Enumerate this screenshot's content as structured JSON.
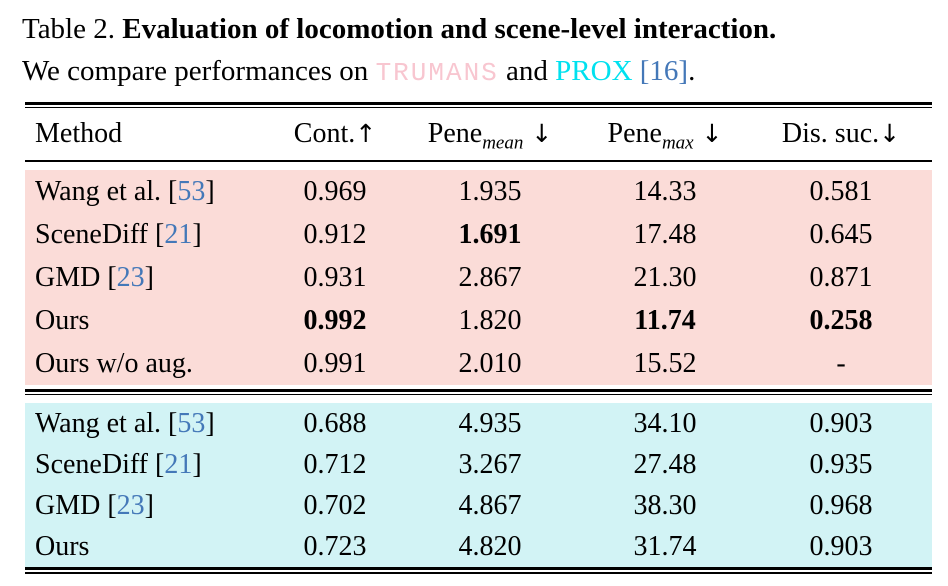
{
  "caption": {
    "line1_prefix": "Table 2. ",
    "line1_bold": "Evaluation of locomotion and scene-level interaction.",
    "line2_pre": "We compare performances on ",
    "dataset1": "TRUMANS",
    "line2_mid": " and ",
    "dataset2": "PROX",
    "line2_cite": " [16]",
    "line2_end": "."
  },
  "colors": {
    "pink_bg": "#fbdcd8",
    "cyan_bg": "#d2f3f5",
    "trumans_text": "#f8c6d0",
    "prox_text": "#00e1ef",
    "cite_blue": "#4478b8"
  },
  "table": {
    "headers": [
      {
        "label": "Method",
        "sub": "",
        "arrow": ""
      },
      {
        "label": "Cont.",
        "sub": "",
        "arrow": "↑"
      },
      {
        "label": "Pene",
        "sub": "mean",
        "arrow": " ↓"
      },
      {
        "label": "Pene",
        "sub": "max",
        "arrow": " ↓"
      },
      {
        "label": "Dis. suc.",
        "sub": "",
        "arrow": "↓"
      }
    ],
    "sections": [
      {
        "name": "trumans",
        "rows": [
          {
            "method": "Wang et al.",
            "cite": "53",
            "values": [
              {
                "t": "0.969",
                "b": false
              },
              {
                "t": "1.935",
                "b": false
              },
              {
                "t": "14.33",
                "b": false
              },
              {
                "t": "0.581",
                "b": false
              }
            ]
          },
          {
            "method": "SceneDiff",
            "cite": "21",
            "values": [
              {
                "t": "0.912",
                "b": false
              },
              {
                "t": "1.691",
                "b": true
              },
              {
                "t": "17.48",
                "b": false
              },
              {
                "t": "0.645",
                "b": false
              }
            ]
          },
          {
            "method": "GMD",
            "cite": "23",
            "values": [
              {
                "t": "0.931",
                "b": false
              },
              {
                "t": "2.867",
                "b": false
              },
              {
                "t": "21.30",
                "b": false
              },
              {
                "t": "0.871",
                "b": false
              }
            ]
          },
          {
            "method": "Ours",
            "cite": "",
            "values": [
              {
                "t": "0.992",
                "b": true
              },
              {
                "t": "1.820",
                "b": false
              },
              {
                "t": "11.74",
                "b": true
              },
              {
                "t": "0.258",
                "b": true
              }
            ]
          },
          {
            "method": "Ours w/o aug.",
            "cite": "",
            "values": [
              {
                "t": "0.991",
                "b": false
              },
              {
                "t": "2.010",
                "b": false
              },
              {
                "t": "15.52",
                "b": false
              },
              {
                "t": "-",
                "b": false
              }
            ]
          }
        ]
      },
      {
        "name": "prox",
        "rows": [
          {
            "method": "Wang et al.",
            "cite": "53",
            "values": [
              {
                "t": "0.688",
                "b": false
              },
              {
                "t": "4.935",
                "b": false
              },
              {
                "t": "34.10",
                "b": false
              },
              {
                "t": "0.903",
                "b": false
              }
            ]
          },
          {
            "method": "SceneDiff",
            "cite": "21",
            "values": [
              {
                "t": "0.712",
                "b": false
              },
              {
                "t": "3.267",
                "b": false
              },
              {
                "t": "27.48",
                "b": false
              },
              {
                "t": "0.935",
                "b": false
              }
            ]
          },
          {
            "method": "GMD",
            "cite": "23",
            "values": [
              {
                "t": "0.702",
                "b": false
              },
              {
                "t": "4.867",
                "b": false
              },
              {
                "t": "38.30",
                "b": false
              },
              {
                "t": "0.968",
                "b": false
              }
            ]
          },
          {
            "method": "Ours",
            "cite": "",
            "values": [
              {
                "t": "0.723",
                "b": false
              },
              {
                "t": "4.820",
                "b": false
              },
              {
                "t": "31.74",
                "b": false
              },
              {
                "t": "0.903",
                "b": false
              }
            ]
          }
        ]
      }
    ]
  }
}
